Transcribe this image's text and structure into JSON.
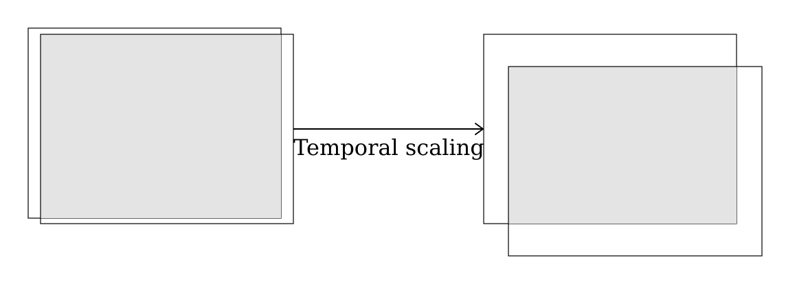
{
  "colors": {
    "frame_fill": "#e4e4e4",
    "frame_stroke": "#000000",
    "background": "#ffffff"
  },
  "diagram": {
    "arrow_label": "Temporal scaling"
  }
}
